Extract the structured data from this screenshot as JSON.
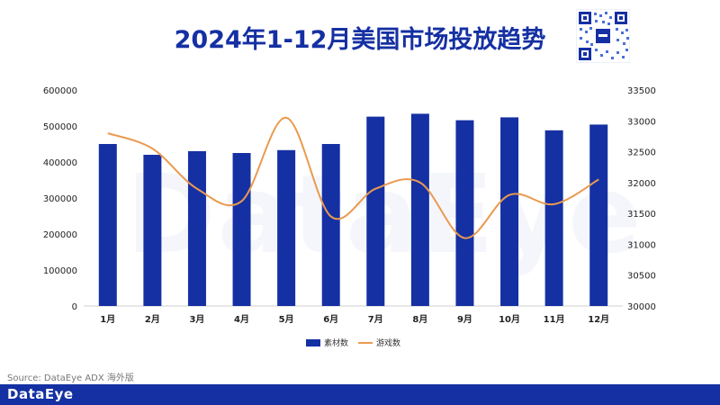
{
  "header": {
    "title": "2024年1-12月美国市场投放趋势"
  },
  "watermark": "DataEye",
  "source": "Source: DataEye ADX 海外版",
  "footer": {
    "logo": "DataEye"
  },
  "colors": {
    "bar": "#1530a3",
    "line": "#ea9a4f",
    "title": "#1530a3"
  },
  "chart_data": {
    "type": "bar",
    "title": "2024年1-12月美国市场投放趋势",
    "categories": [
      "1月",
      "2月",
      "3月",
      "4月",
      "5月",
      "6月",
      "7月",
      "8月",
      "9月",
      "10月",
      "11月",
      "12月"
    ],
    "series": [
      {
        "name": "素材数",
        "type": "bar",
        "axis": "left",
        "values": [
          450000,
          420000,
          430000,
          425000,
          433000,
          450000,
          526000,
          534000,
          516000,
          524000,
          488000,
          504000
        ]
      },
      {
        "name": "游戏数",
        "type": "line",
        "axis": "right",
        "values": [
          32800,
          32550,
          31900,
          31700,
          33050,
          31450,
          31900,
          32000,
          31100,
          31800,
          31650,
          32050
        ]
      }
    ],
    "y_left": {
      "ylim": [
        0,
        600000
      ],
      "ticks": [
        "0",
        "100000",
        "200000",
        "300000",
        "400000",
        "500000",
        "600000"
      ]
    },
    "y_right": {
      "ylim": [
        30000,
        33500
      ],
      "ticks": [
        "30000",
        "30500",
        "31000",
        "31500",
        "32000",
        "32500",
        "33000",
        "33500"
      ]
    },
    "legend": {
      "position": "bottom",
      "entries": [
        "素材数",
        "游戏数"
      ]
    },
    "grid": false
  }
}
